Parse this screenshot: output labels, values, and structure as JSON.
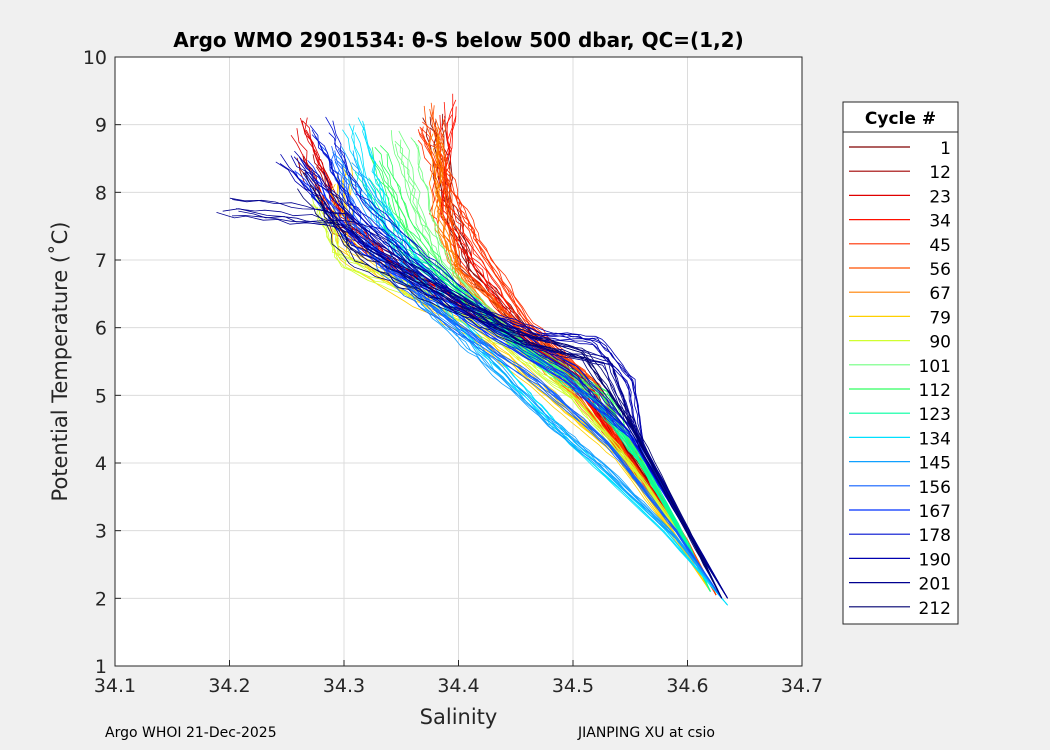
{
  "chart_data": {
    "type": "line",
    "title": "Argo WMO 2901534: θ-S below 500 dbar,  QC=(1,2)",
    "xlabel": "Salinity",
    "ylabel": "Potential Temperature (˚C)",
    "xlim": [
      34.1,
      34.7
    ],
    "ylim": [
      1,
      10
    ],
    "xticks": [
      "34.1",
      "34.2",
      "34.3",
      "34.4",
      "34.5",
      "34.6",
      "34.7"
    ],
    "yticks": [
      "1",
      "2",
      "3",
      "4",
      "5",
      "6",
      "7",
      "8",
      "9",
      "10"
    ],
    "grid": true,
    "legend": {
      "title": "Cycle #",
      "placement": "right"
    },
    "series": [
      {
        "name": "1",
        "color": "#800000",
        "points": [
          [
            34.38,
            9.0
          ],
          [
            34.39,
            7.8
          ],
          [
            34.41,
            6.8
          ],
          [
            34.46,
            5.9
          ],
          [
            34.51,
            5.2
          ],
          [
            34.55,
            4.1
          ],
          [
            34.6,
            2.8
          ],
          [
            34.625,
            2.05
          ]
        ]
      },
      {
        "name": "12",
        "color": "#a00000",
        "points": [
          [
            34.27,
            8.5
          ],
          [
            34.3,
            7.5
          ],
          [
            34.36,
            6.8
          ],
          [
            34.44,
            6.0
          ],
          [
            34.5,
            5.3
          ],
          [
            34.55,
            4.1
          ],
          [
            34.6,
            2.8
          ],
          [
            34.625,
            2.05
          ]
        ]
      },
      {
        "name": "23",
        "color": "#e00000",
        "points": [
          [
            34.26,
            9.0
          ],
          [
            34.29,
            7.7
          ],
          [
            34.34,
            6.9
          ],
          [
            34.42,
            6.2
          ],
          [
            34.49,
            5.4
          ],
          [
            34.54,
            4.2
          ],
          [
            34.6,
            2.8
          ],
          [
            34.62,
            2.1
          ]
        ]
      },
      {
        "name": "34",
        "color": "#ff1000",
        "points": [
          [
            34.39,
            9.3
          ],
          [
            34.38,
            7.8
          ],
          [
            34.41,
            7.0
          ],
          [
            34.45,
            6.0
          ],
          [
            34.5,
            5.2
          ],
          [
            34.55,
            4.0
          ],
          [
            34.6,
            2.8
          ],
          [
            34.625,
            2.05
          ]
        ]
      },
      {
        "name": "45",
        "color": "#ff3000",
        "points": [
          [
            34.37,
            8.9
          ],
          [
            34.4,
            7.9
          ],
          [
            34.42,
            7.2
          ],
          [
            34.46,
            6.1
          ],
          [
            34.51,
            5.3
          ],
          [
            34.55,
            4.0
          ],
          [
            34.6,
            2.8
          ],
          [
            34.62,
            2.1
          ]
        ]
      },
      {
        "name": "56",
        "color": "#ff5000",
        "points": [
          [
            34.38,
            9.2
          ],
          [
            34.39,
            8.0
          ],
          [
            34.4,
            6.9
          ],
          [
            34.46,
            5.9
          ],
          [
            34.52,
            5.2
          ],
          [
            34.56,
            4.0
          ],
          [
            34.6,
            2.85
          ],
          [
            34.625,
            2.05
          ]
        ]
      },
      {
        "name": "67",
        "color": "#ff8000",
        "points": [
          [
            34.38,
            8.8
          ],
          [
            34.38,
            7.6
          ],
          [
            34.4,
            6.7
          ],
          [
            34.45,
            5.8
          ],
          [
            34.5,
            5.0
          ],
          [
            34.55,
            4.0
          ],
          [
            34.6,
            2.8
          ],
          [
            34.62,
            2.1
          ]
        ]
      },
      {
        "name": "79",
        "color": "#ffd000",
        "points": [
          [
            34.3,
            8.3
          ],
          [
            34.3,
            7.2
          ],
          [
            34.35,
            6.6
          ],
          [
            34.42,
            5.9
          ],
          [
            34.48,
            5.0
          ],
          [
            34.54,
            4.1
          ],
          [
            34.59,
            2.9
          ],
          [
            34.62,
            2.1
          ]
        ]
      },
      {
        "name": "90",
        "color": "#d0ff30",
        "points": [
          [
            34.28,
            7.9
          ],
          [
            34.3,
            7.0
          ],
          [
            34.37,
            6.5
          ],
          [
            34.44,
            5.8
          ],
          [
            34.5,
            5.0
          ],
          [
            34.55,
            4.0
          ],
          [
            34.6,
            2.8
          ],
          [
            34.62,
            2.1
          ]
        ]
      },
      {
        "name": "101",
        "color": "#70ff80",
        "points": [
          [
            34.35,
            8.8
          ],
          [
            34.37,
            7.6
          ],
          [
            34.39,
            6.8
          ],
          [
            34.45,
            5.8
          ],
          [
            34.52,
            5.0
          ],
          [
            34.56,
            4.0
          ],
          [
            34.6,
            2.8
          ],
          [
            34.62,
            2.1
          ]
        ]
      },
      {
        "name": "112",
        "color": "#30ff60",
        "points": [
          [
            34.33,
            8.6
          ],
          [
            34.36,
            7.4
          ],
          [
            34.4,
            6.5
          ],
          [
            34.46,
            5.7
          ],
          [
            34.53,
            5.0
          ],
          [
            34.56,
            4.0
          ],
          [
            34.6,
            2.8
          ],
          [
            34.62,
            2.1
          ]
        ]
      },
      {
        "name": "123",
        "color": "#00ffa0",
        "points": [
          [
            34.32,
            8.2
          ],
          [
            34.35,
            7.2
          ],
          [
            34.41,
            6.4
          ],
          [
            34.47,
            5.5
          ],
          [
            34.52,
            4.9
          ],
          [
            34.56,
            4.0
          ],
          [
            34.6,
            2.8
          ],
          [
            34.62,
            2.1
          ]
        ]
      },
      {
        "name": "134",
        "color": "#00e0ff",
        "points": [
          [
            34.31,
            9.0
          ],
          [
            34.33,
            7.8
          ],
          [
            34.36,
            7.0
          ],
          [
            34.4,
            6.1
          ],
          [
            34.46,
            5.0
          ],
          [
            34.5,
            4.3
          ],
          [
            34.58,
            3.0
          ],
          [
            34.635,
            1.9
          ]
        ]
      },
      {
        "name": "145",
        "color": "#10a0ff",
        "points": [
          [
            34.3,
            8.5
          ],
          [
            34.34,
            7.4
          ],
          [
            34.37,
            6.4
          ],
          [
            34.42,
            5.6
          ],
          [
            34.48,
            4.6
          ],
          [
            34.53,
            3.9
          ],
          [
            34.59,
            2.9
          ],
          [
            34.63,
            2.0
          ]
        ]
      },
      {
        "name": "156",
        "color": "#1060ff",
        "points": [
          [
            34.29,
            8.6
          ],
          [
            34.31,
            7.6
          ],
          [
            34.34,
            6.8
          ],
          [
            34.4,
            6.0
          ],
          [
            34.47,
            5.2
          ],
          [
            34.53,
            4.3
          ],
          [
            34.59,
            3.0
          ],
          [
            34.63,
            2.0
          ]
        ]
      },
      {
        "name": "167",
        "color": "#0030ff",
        "points": [
          [
            34.26,
            8.4
          ],
          [
            34.3,
            7.4
          ],
          [
            34.35,
            6.8
          ],
          [
            34.42,
            6.0
          ],
          [
            34.49,
            5.3
          ],
          [
            34.55,
            4.4
          ],
          [
            34.6,
            3.0
          ],
          [
            34.63,
            2.0
          ]
        ]
      },
      {
        "name": "178",
        "color": "#0010d0",
        "points": [
          [
            34.28,
            9.0
          ],
          [
            34.31,
            7.9
          ],
          [
            34.37,
            7.0
          ],
          [
            34.43,
            6.1
          ],
          [
            34.5,
            5.4
          ],
          [
            34.55,
            4.5
          ],
          [
            34.6,
            3.0
          ],
          [
            34.635,
            2.0
          ]
        ]
      },
      {
        "name": "190",
        "color": "#0000b0",
        "points": [
          [
            34.25,
            8.5
          ],
          [
            34.32,
            7.3
          ],
          [
            34.4,
            6.3
          ],
          [
            34.47,
            5.9
          ],
          [
            34.52,
            5.8
          ],
          [
            34.55,
            5.2
          ],
          [
            34.56,
            4.2
          ],
          [
            34.6,
            3.0
          ],
          [
            34.635,
            2.0
          ]
        ]
      },
      {
        "name": "201",
        "color": "#000090",
        "points": [
          [
            34.2,
            7.8
          ],
          [
            34.3,
            7.6
          ],
          [
            34.38,
            6.6
          ],
          [
            34.46,
            5.8
          ],
          [
            34.53,
            5.5
          ],
          [
            34.55,
            4.6
          ],
          [
            34.6,
            3.0
          ],
          [
            34.635,
            2.0
          ]
        ]
      },
      {
        "name": "212",
        "color": "#000070",
        "points": [
          [
            34.27,
            8.2
          ],
          [
            34.31,
            7.1
          ],
          [
            34.38,
            6.5
          ],
          [
            34.45,
            5.9
          ],
          [
            34.51,
            5.6
          ],
          [
            34.55,
            4.6
          ],
          [
            34.6,
            3.0
          ],
          [
            34.63,
            2.0
          ]
        ]
      }
    ]
  },
  "footer": {
    "left": "Argo WHOI 21-Dec-2025",
    "right": "JIANPING XU at csio"
  }
}
